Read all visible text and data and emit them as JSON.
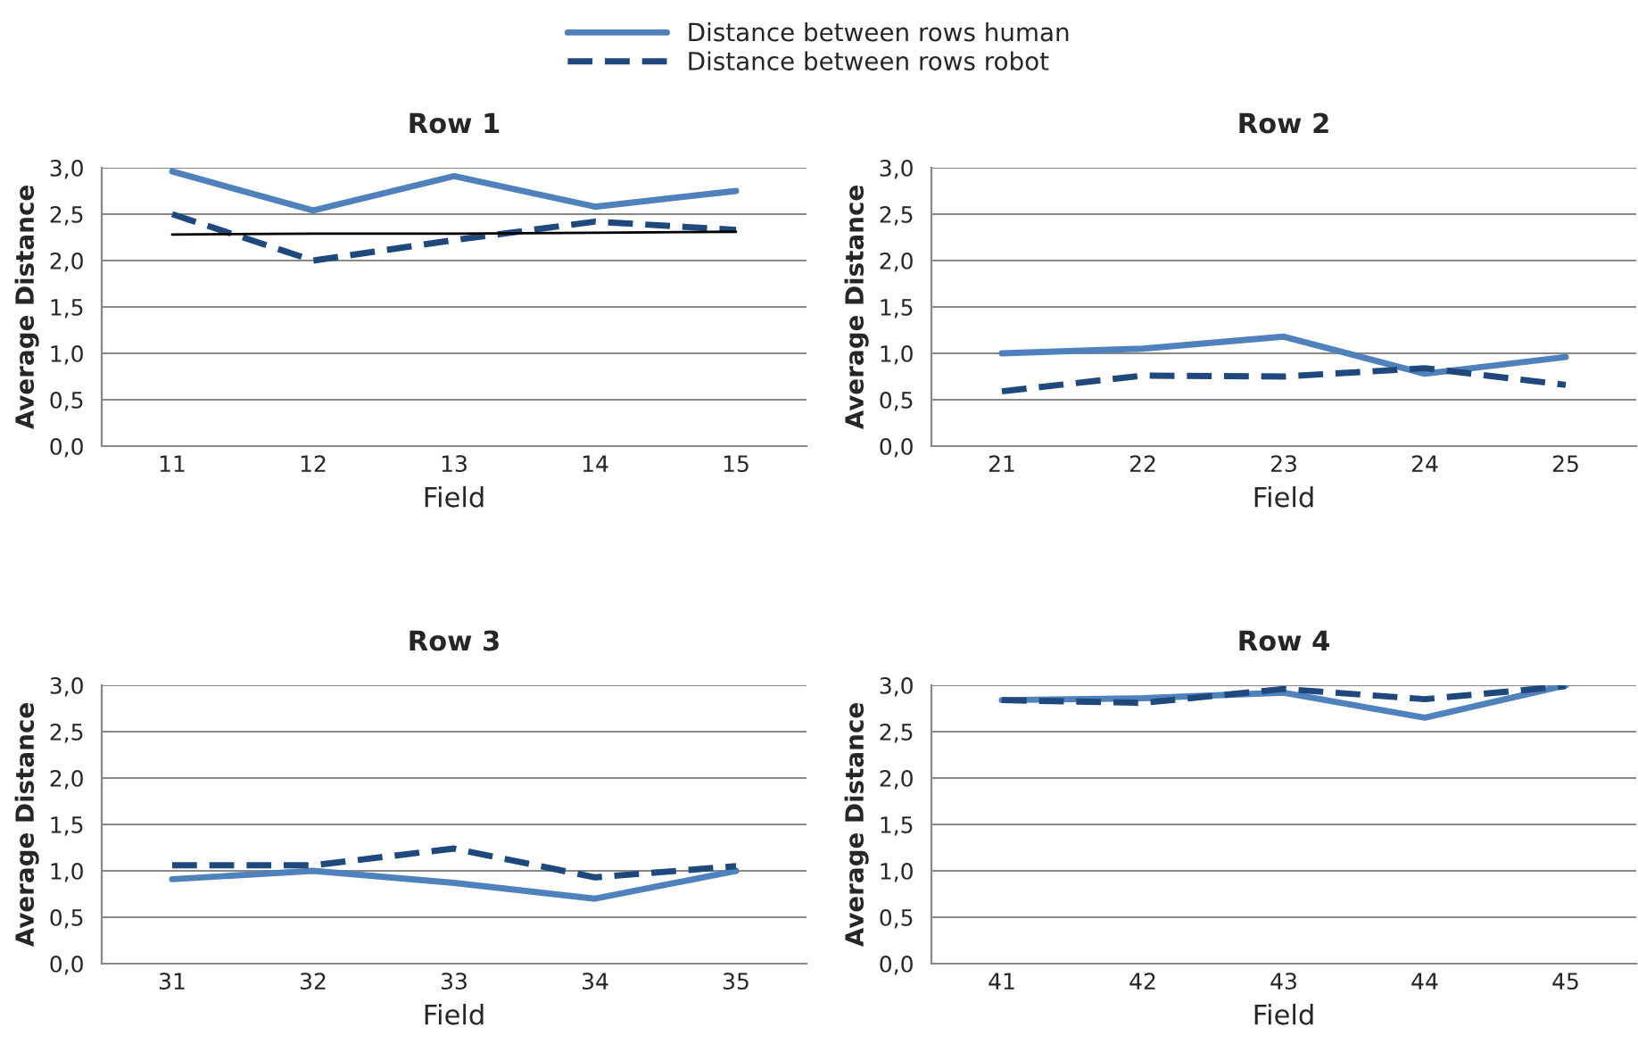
{
  "chart_data": [
    {
      "type": "line",
      "title": "Row 1",
      "xlabel": "Field",
      "ylabel": "Average Distance",
      "categories": [
        "11",
        "12",
        "13",
        "14",
        "15"
      ],
      "ylim": [
        0,
        3
      ],
      "yticks": [
        {
          "value": 0,
          "label": "0,0"
        },
        {
          "value": 0.5,
          "label": "0,5"
        },
        {
          "value": 1,
          "label": "1,0"
        },
        {
          "value": 1.5,
          "label": "1,5"
        },
        {
          "value": 2,
          "label": "2,0"
        },
        {
          "value": 2.5,
          "label": "2,5"
        },
        {
          "value": 3,
          "label": "3,0"
        }
      ],
      "grid": "y",
      "legend": "top",
      "marker": "none",
      "series": [
        {
          "name": "Distance between rows human",
          "color": "#4f81bd",
          "line_style": "solid",
          "values": [
            2.96,
            2.54,
            2.91,
            2.58,
            2.75
          ]
        },
        {
          "name": "Distance between rows robot",
          "color": "#1f497d",
          "line_style": "dashed",
          "values": [
            2.5,
            2.0,
            2.22,
            2.42,
            2.33
          ]
        },
        {
          "color": "#000000",
          "line_style": "solid",
          "values": [
            2.28,
            2.29,
            2.29,
            2.3,
            2.31
          ]
        }
      ]
    },
    {
      "type": "line",
      "title": "Row 2",
      "xlabel": "Field",
      "ylabel": "Average Distance",
      "categories": [
        "21",
        "22",
        "23",
        "24",
        "25"
      ],
      "ylim": [
        0,
        3
      ],
      "yticks": [
        {
          "value": 0,
          "label": "0,0"
        },
        {
          "value": 0.5,
          "label": "0,5"
        },
        {
          "value": 1,
          "label": "1,0"
        },
        {
          "value": 1.5,
          "label": "1,5"
        },
        {
          "value": 2,
          "label": "2,0"
        },
        {
          "value": 2.5,
          "label": "2,5"
        },
        {
          "value": 3,
          "label": "3,0"
        }
      ],
      "grid": "y",
      "marker": "none",
      "series": [
        {
          "color": "#4f81bd",
          "line_style": "solid",
          "values": [
            1.0,
            1.05,
            1.18,
            0.78,
            0.96
          ]
        },
        {
          "color": "#1f497d",
          "line_style": "dashed",
          "values": [
            0.59,
            0.76,
            0.75,
            0.84,
            0.66
          ]
        }
      ]
    },
    {
      "type": "line",
      "title": "Row 3",
      "xlabel": "Field",
      "ylabel": "Average Distance",
      "categories": [
        "31",
        "32",
        "33",
        "34",
        "35"
      ],
      "ylim": [
        0,
        3
      ],
      "yticks": [
        {
          "value": 0,
          "label": "0,0"
        },
        {
          "value": 0.5,
          "label": "0,5"
        },
        {
          "value": 1,
          "label": "1,0"
        },
        {
          "value": 1.5,
          "label": "1,5"
        },
        {
          "value": 2,
          "label": "2,0"
        },
        {
          "value": 2.5,
          "label": "2,5"
        },
        {
          "value": 3,
          "label": "3,0"
        }
      ],
      "grid": "y",
      "marker": "none",
      "series": [
        {
          "color": "#4f81bd",
          "line_style": "solid",
          "values": [
            0.91,
            1.0,
            0.87,
            0.7,
            1.0
          ]
        },
        {
          "color": "#1f497d",
          "line_style": "dashed",
          "values": [
            1.06,
            1.06,
            1.24,
            0.93,
            1.05
          ]
        }
      ]
    },
    {
      "type": "line",
      "title": "Row 4",
      "xlabel": "Field",
      "ylabel": "Average Distance",
      "categories": [
        "41",
        "42",
        "43",
        "44",
        "45"
      ],
      "ylim": [
        0,
        3
      ],
      "yticks": [
        {
          "value": 0,
          "label": "0,0"
        },
        {
          "value": 0.5,
          "label": "0,5"
        },
        {
          "value": 1,
          "label": "1,0"
        },
        {
          "value": 1.5,
          "label": "1,5"
        },
        {
          "value": 2,
          "label": "2,0"
        },
        {
          "value": 2.5,
          "label": "2,5"
        },
        {
          "value": 3,
          "label": "3,0"
        }
      ],
      "grid": "y",
      "marker": "none",
      "series": [
        {
          "color": "#4f81bd",
          "line_style": "solid",
          "values": [
            2.84,
            2.86,
            2.92,
            2.65,
            3.0
          ]
        },
        {
          "color": "#1f497d",
          "line_style": "dashed",
          "values": [
            2.84,
            2.81,
            2.96,
            2.85,
            2.99
          ]
        }
      ]
    }
  ]
}
